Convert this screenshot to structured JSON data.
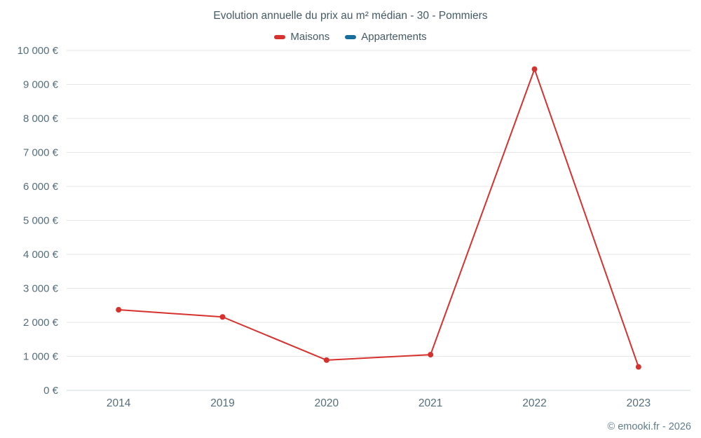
{
  "title": "Evolution annuelle du prix au m² médian - 30 - Pommiers",
  "legend": [
    {
      "label": "Maisons",
      "color": "#d7312e"
    },
    {
      "label": "Appartements",
      "color": "#176d9c"
    }
  ],
  "footer": "© emooki.fr - 2026",
  "chart_data": {
    "type": "line",
    "title": "Evolution annuelle du prix au m² médian - 30 - Pommiers",
    "categories": [
      "2014",
      "2019",
      "2020",
      "2021",
      "2022",
      "2023"
    ],
    "series": [
      {
        "name": "Maisons",
        "color": "#d7312e",
        "values": [
          2370,
          2160,
          890,
          1050,
          9450,
          690
        ]
      },
      {
        "name": "Appartements",
        "color": "#176d9c",
        "values": []
      }
    ],
    "xlabel": "",
    "ylabel": "",
    "ylim": [
      0,
      10000
    ],
    "ytick_step": 1000,
    "ytick_suffix": " €",
    "grid": true,
    "legend_position": "top",
    "grid_color": "#e6e6e6",
    "axis_color": "#cfd8dc",
    "text_color": "#546e7a"
  }
}
